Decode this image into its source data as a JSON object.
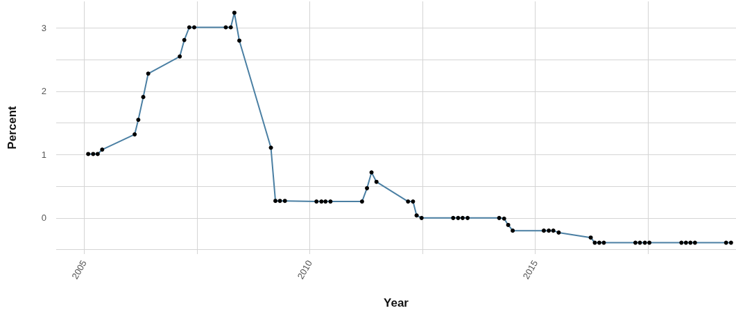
{
  "chart_data": {
    "type": "line",
    "xlabel": "Year",
    "ylabel": "Percent",
    "marker": "circle",
    "x": [
      2005.09,
      2005.2,
      2005.3,
      2005.4,
      2006.12,
      2006.2,
      2006.31,
      2006.42,
      2007.12,
      2007.22,
      2007.33,
      2007.44,
      2008.14,
      2008.25,
      2008.33,
      2008.44,
      2009.14,
      2009.24,
      2009.34,
      2009.45,
      2010.15,
      2010.26,
      2010.35,
      2010.46,
      2011.16,
      2011.27,
      2011.37,
      2011.48,
      2012.18,
      2012.29,
      2012.37,
      2012.48,
      2013.18,
      2013.29,
      2013.39,
      2013.5,
      2014.2,
      2014.31,
      2014.4,
      2014.5,
      2015.19,
      2015.3,
      2015.4,
      2015.52,
      2016.23,
      2016.32,
      2016.42,
      2016.52,
      2017.22,
      2017.32,
      2017.43,
      2017.53,
      2018.24,
      2018.34,
      2018.44,
      2018.54,
      2019.23,
      2019.34
    ],
    "series": [
      {
        "color": "#4a7fa3",
        "colors": [
          "#000000",
          "#000000",
          "#000000",
          "#000000",
          "#000000",
          "#000000",
          "#000000",
          "#000000",
          "#000000",
          "#000000",
          "#000000",
          "#000000",
          "#000000",
          "#000000",
          "#000000",
          "#000000",
          "#000000",
          "#000000",
          "#000000",
          "#000000",
          "#000000",
          "#000000",
          "#000000",
          "#000000",
          "#000000",
          "#000000",
          "#000000",
          "#000000",
          "#000000",
          "#000000",
          "#000000",
          "#000000",
          "#000000",
          "#000000",
          "#000000",
          "#000000",
          "#000000",
          "#000000",
          "#000000",
          "#000000",
          "#000000",
          "#000000",
          "#000000",
          "#000000",
          "#000000",
          "#000000",
          "#000000",
          "#000000",
          "#000000",
          "#000000",
          "#000000",
          "#000000",
          "#000000",
          "#000000",
          "#000000",
          "#000000",
          "#000000",
          "#000000"
        ],
        "values": [
          1.01,
          1.01,
          1.01,
          1.08,
          1.32,
          1.55,
          1.91,
          2.28,
          2.55,
          2.81,
          3.01,
          3.01,
          3.01,
          3.01,
          3.24,
          2.8,
          1.11,
          0.27,
          0.27,
          0.27,
          0.26,
          0.26,
          0.26,
          0.26,
          0.26,
          0.47,
          0.72,
          0.57,
          0.26,
          0.26,
          0.04,
          0,
          0,
          0,
          0,
          0,
          0,
          -0.01,
          -0.11,
          -0.2,
          -0.2,
          -0.2,
          -0.2,
          -0.23,
          -0.31,
          -0.39,
          -0.39,
          -0.39,
          -0.39,
          -0.39,
          -0.39,
          -0.39,
          -0.39,
          -0.39,
          -0.39,
          -0.39,
          -0.39,
          -0.39
        ]
      }
    ],
    "xlim": [
      2004.38,
      2019.45
    ],
    "xticks": [
      2005,
      {
        "value": 2007.5,
        "label": null
      },
      2010,
      {
        "value": 2012.5,
        "label": null
      },
      2015,
      {
        "value": 2017.5,
        "label": null
      }
    ],
    "ylim": [
      -0.57,
      3.42
    ],
    "yticks": [
      {
        "value": -0.5,
        "label": null
      },
      0,
      {
        "value": 0.5,
        "label": null
      },
      1,
      {
        "value": 1.5,
        "label": null
      },
      2,
      {
        "value": 2.5,
        "label": null
      },
      3
    ],
    "grid": true
  }
}
